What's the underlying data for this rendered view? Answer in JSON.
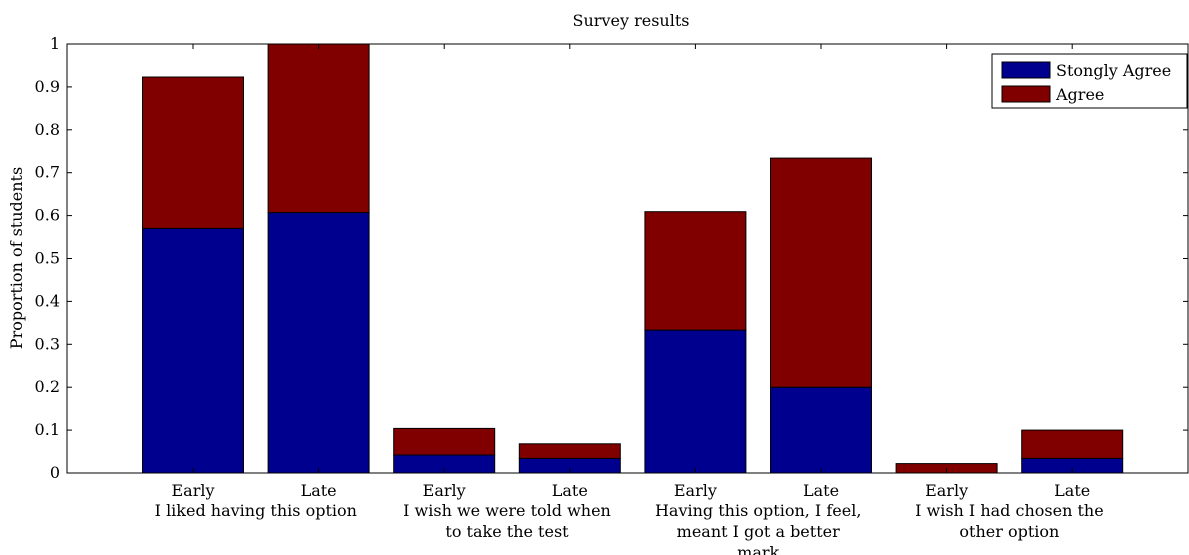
{
  "chart_data": {
    "type": "bar",
    "stacked": true,
    "title": "Survey results",
    "xlabel": "",
    "ylabel": "Proportion of students",
    "ylim": [
      0,
      1
    ],
    "yticks": [
      "0",
      "0.1",
      "0.2",
      "0.3",
      "0.4",
      "0.5",
      "0.6",
      "0.7",
      "0.8",
      "0.9",
      "1"
    ],
    "categories": [
      "Early",
      "Late",
      "Early",
      "Late",
      "Early",
      "Late",
      "Early",
      "Late"
    ],
    "groups": [
      {
        "label_lines": [
          "I liked having this option"
        ]
      },
      {
        "label_lines": [
          "I wish we were told when",
          "to take the test"
        ]
      },
      {
        "label_lines": [
          "Having this option, I feel,",
          "meant I got a better",
          "mark"
        ]
      },
      {
        "label_lines": [
          "I wish I had chosen the",
          "other option"
        ]
      }
    ],
    "series": [
      {
        "name": "Stongly Agree",
        "color": "#00008f",
        "values": [
          0.57,
          0.607,
          0.042,
          0.034,
          0.333,
          0.2,
          0.0,
          0.034
        ]
      },
      {
        "name": "Agree",
        "color": "#800000",
        "values": [
          0.353,
          0.393,
          0.062,
          0.034,
          0.276,
          0.534,
          0.022,
          0.066
        ]
      }
    ],
    "legend_position": "top-right",
    "grid": false
  }
}
